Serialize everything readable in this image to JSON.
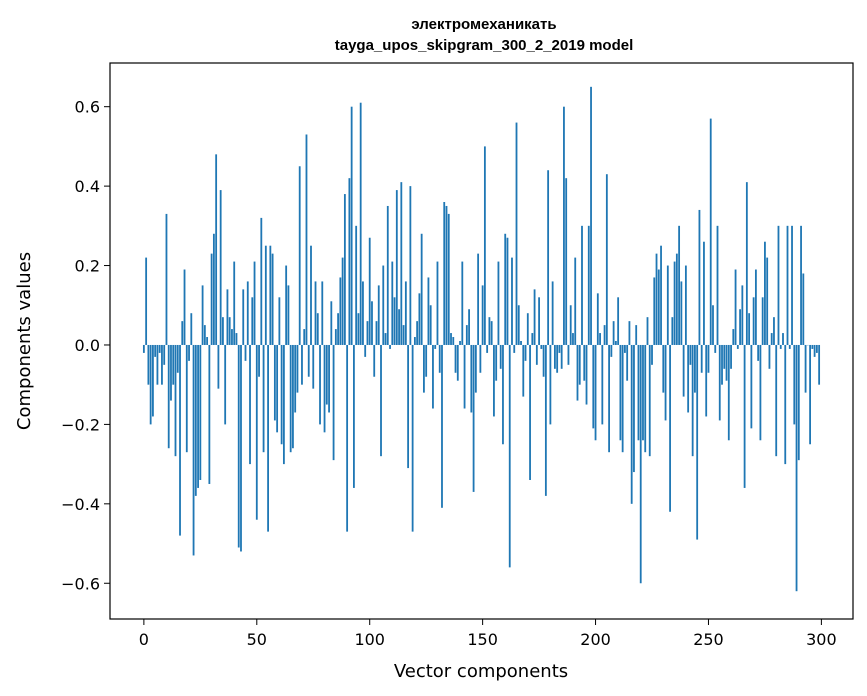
{
  "chart_data": {
    "type": "bar",
    "title": "электромеханикать",
    "subtitle": "tayga_upos_skipgram_300_2_2019 model",
    "xlabel": "Vector components",
    "ylabel": "Components values",
    "xlim": [
      -15,
      314
    ],
    "ylim": [
      -0.69,
      0.71
    ],
    "x_ticks": [
      0,
      50,
      100,
      150,
      200,
      250,
      300
    ],
    "y_ticks": [
      -0.6,
      -0.4,
      -0.2,
      0.0,
      0.2,
      0.4,
      0.6
    ],
    "x_tick_labels": [
      "0",
      "50",
      "100",
      "150",
      "200",
      "250",
      "300"
    ],
    "y_tick_labels": [
      "−0.6",
      "−0.4",
      "−0.2",
      "0.0",
      "0.2",
      "0.4",
      "0.6"
    ],
    "grid": false,
    "bar_color": "#1f77b4",
    "values": [
      -0.02,
      0.22,
      -0.1,
      -0.2,
      -0.18,
      -0.03,
      -0.1,
      -0.02,
      -0.1,
      -0.05,
      0.33,
      -0.26,
      -0.14,
      -0.1,
      -0.28,
      -0.07,
      -0.48,
      0.06,
      0.19,
      -0.27,
      -0.04,
      0.08,
      -0.53,
      -0.38,
      -0.36,
      -0.34,
      0.15,
      0.05,
      0.02,
      -0.35,
      0.23,
      0.28,
      0.48,
      -0.11,
      0.39,
      0.07,
      -0.2,
      0.14,
      0.07,
      0.04,
      0.21,
      0.03,
      -0.51,
      -0.52,
      0.14,
      -0.04,
      0.16,
      -0.3,
      0.12,
      0.21,
      -0.44,
      -0.08,
      0.32,
      -0.27,
      0.25,
      -0.47,
      0.25,
      0.23,
      -0.19,
      -0.22,
      0.12,
      -0.25,
      -0.3,
      0.2,
      0.15,
      -0.27,
      -0.26,
      -0.17,
      -0.12,
      0.45,
      -0.1,
      0.04,
      0.53,
      -0.08,
      0.25,
      -0.11,
      0.16,
      0.08,
      -0.2,
      0.16,
      -0.22,
      -0.15,
      -0.17,
      0.11,
      -0.29,
      0.04,
      0.08,
      0.17,
      0.22,
      0.38,
      -0.47,
      0.42,
      0.6,
      -0.36,
      0.3,
      0.08,
      0.61,
      0.16,
      -0.03,
      0.06,
      0.27,
      0.11,
      -0.08,
      0.06,
      0.15,
      -0.28,
      0.2,
      0.03,
      0.35,
      -0.01,
      0.21,
      0.12,
      0.39,
      0.09,
      0.41,
      0.05,
      0.16,
      -0.31,
      0.4,
      -0.47,
      0.02,
      0.06,
      0.13,
      0.28,
      -0.12,
      -0.08,
      0.17,
      0.1,
      -0.16,
      -0.01,
      0.21,
      -0.07,
      -0.41,
      0.36,
      0.35,
      0.33,
      0.03,
      0.02,
      -0.07,
      -0.09,
      0.01,
      0.21,
      -0.16,
      0.05,
      0.09,
      -0.17,
      -0.37,
      -0.12,
      0.23,
      -0.07,
      0.15,
      0.5,
      -0.02,
      0.07,
      0.06,
      -0.18,
      -0.09,
      0.21,
      -0.06,
      -0.25,
      0.28,
      0.27,
      -0.56,
      0.22,
      -0.02,
      0.56,
      0.1,
      0.01,
      -0.13,
      -0.04,
      0.08,
      -0.34,
      0.03,
      0.14,
      -0.05,
      0.12,
      -0.01,
      -0.08,
      -0.38,
      0.44,
      -0.2,
      0.16,
      -0.06,
      -0.07,
      -0.02,
      -0.06,
      0.6,
      0.42,
      -0.05,
      0.1,
      0.03,
      0.22,
      -0.14,
      -0.1,
      0.3,
      -0.09,
      -0.15,
      0.3,
      0.65,
      -0.21,
      -0.24,
      0.13,
      0.03,
      -0.2,
      0.05,
      0.43,
      -0.27,
      -0.03,
      0.06,
      0.01,
      0.12,
      -0.24,
      -0.27,
      -0.02,
      -0.09,
      0.06,
      -0.4,
      -0.32,
      0.05,
      -0.24,
      -0.6,
      -0.24,
      -0.27,
      0.07,
      -0.28,
      -0.05,
      0.17,
      0.23,
      0.19,
      0.25,
      -0.12,
      -0.19,
      0.2,
      -0.42,
      0.07,
      0.21,
      0.23,
      0.3,
      0.16,
      -0.13,
      0.2,
      -0.17,
      -0.05,
      -0.28,
      -0.12,
      -0.49,
      0.34,
      -0.07,
      0.26,
      -0.18,
      -0.07,
      0.57,
      0.1,
      -0.02,
      0.3,
      -0.19,
      -0.1,
      -0.06,
      -0.09,
      -0.24,
      -0.06,
      0.04,
      0.19,
      -0.01,
      0.09,
      0.15,
      -0.36,
      0.41,
      0.08,
      -0.21,
      0.12,
      0.19,
      -0.04,
      -0.24,
      0.12,
      0.26,
      0.22,
      -0.06,
      0.03,
      0.07,
      -0.28,
      0.3,
      -0.01,
      0.03,
      -0.3,
      0.3,
      -0.01,
      0.3,
      -0.2,
      -0.62,
      -0.29,
      0.3,
      0.18,
      -0.12,
      0.0,
      -0.25,
      -0.01,
      -0.03,
      -0.02,
      -0.1
    ]
  }
}
